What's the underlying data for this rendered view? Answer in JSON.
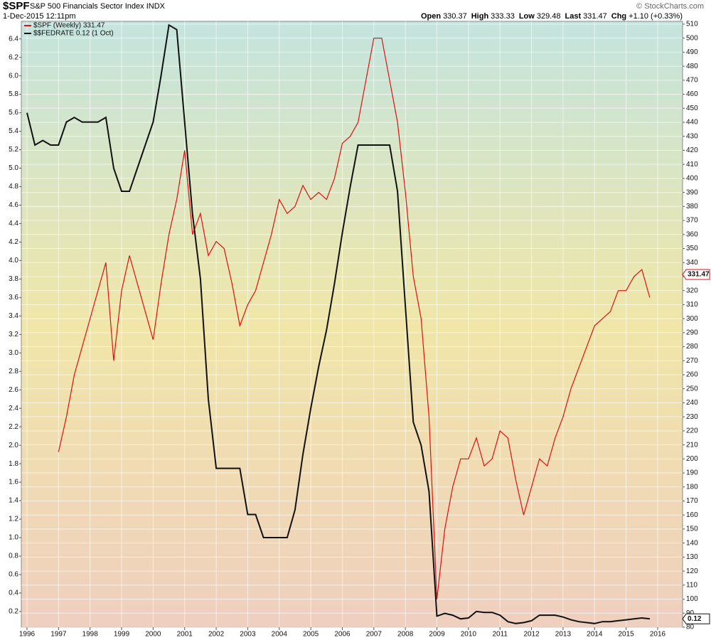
{
  "chart_data": {
    "type": "line",
    "symbol": "$SPF",
    "title": "S&P 500 Financials Sector Index",
    "exchange": "INDX",
    "date": "1-Dec-2015 12:11pm",
    "source": "© StockCharts.com",
    "quote": [
      {
        "label": "Open",
        "value": "330.37"
      },
      {
        "label": "High",
        "value": "333.33"
      },
      {
        "label": "Low",
        "value": "329.48"
      },
      {
        "label": "Last",
        "value": "331.47"
      },
      {
        "label": "Chg",
        "value": "+1.10 (+0.33%)"
      }
    ],
    "grid": true,
    "legend": "top-left",
    "xlim": [
      1995.82,
      2016.79
    ],
    "xticks": [
      1996,
      1997,
      1998,
      1999,
      2000,
      2001,
      2002,
      2003,
      2004,
      2005,
      2006,
      2007,
      2008,
      2009,
      2010,
      2011,
      2012,
      2013,
      2014,
      2015,
      2016
    ],
    "ylim": [
      0.03,
      6.59
    ],
    "yticks": [
      0.2,
      0.4,
      0.6,
      0.8,
      {
        "value": 1,
        "label": "1.0"
      },
      1.2,
      1.4,
      1.6,
      1.8,
      {
        "value": 2,
        "label": "2.0"
      },
      2.2,
      2.4,
      2.6,
      2.8,
      {
        "value": 3,
        "label": "3.0"
      },
      3.2,
      3.4,
      3.6,
      3.8,
      {
        "value": 4,
        "label": "4.0"
      },
      4.2,
      4.4,
      4.6,
      4.8,
      {
        "value": 5,
        "label": "5.0"
      },
      5.2,
      5.4,
      5.6,
      5.8,
      {
        "value": 6,
        "label": "6.0"
      },
      6.2,
      6.4
    ],
    "y2lim": [
      80,
      512
    ],
    "y2ticks": [
      80,
      90,
      100,
      110,
      120,
      130,
      140,
      150,
      160,
      170,
      180,
      190,
      200,
      210,
      220,
      230,
      240,
      250,
      260,
      270,
      280,
      290,
      300,
      310,
      320,
      330,
      340,
      350,
      360,
      370,
      380,
      390,
      400,
      410,
      420,
      430,
      440,
      450,
      460,
      470,
      480,
      490,
      500,
      510
    ],
    "x": [
      1996,
      1996.25,
      1996.5,
      1996.75,
      1997,
      1997.25,
      1997.5,
      1997.75,
      1998,
      1998.25,
      1998.5,
      1998.75,
      1999,
      1999.25,
      1999.5,
      1999.75,
      2000,
      2000.25,
      2000.5,
      2000.75,
      2001,
      2001.25,
      2001.5,
      2001.75,
      2002,
      2002.25,
      2002.5,
      2002.75,
      2003,
      2003.25,
      2003.5,
      2003.75,
      2004,
      2004.25,
      2004.5,
      2004.75,
      2005,
      2005.25,
      2005.5,
      2005.75,
      2006,
      2006.25,
      2006.5,
      2006.75,
      2007,
      2007.25,
      2007.5,
      2007.75,
      2008,
      2008.25,
      2008.5,
      2008.75,
      2009,
      2009.25,
      2009.5,
      2009.75,
      2010,
      2010.25,
      2010.5,
      2010.75,
      2011,
      2011.25,
      2011.5,
      2011.75,
      2012,
      2012.25,
      2012.5,
      2012.75,
      2013,
      2013.25,
      2013.5,
      2013.75,
      2014,
      2014.25,
      2014.5,
      2014.75,
      2015,
      2015.25,
      2015.5,
      2015.75
    ],
    "series": [
      {
        "name": "$SPF (Weekly) 331.47",
        "color": "#dd1111",
        "axis": "y2",
        "tag": 331.47,
        "values": [
          null,
          null,
          null,
          null,
          205,
          230,
          260,
          280,
          300,
          320,
          340,
          270,
          320,
          345,
          325,
          305,
          285,
          325,
          360,
          385,
          420,
          360,
          375,
          345,
          355,
          350,
          325,
          295,
          310,
          320,
          340,
          360,
          385,
          375,
          380,
          395,
          385,
          390,
          385,
          400,
          425,
          430,
          440,
          470,
          500,
          500,
          470,
          440,
          390,
          330,
          300,
          230,
          100,
          150,
          180,
          200,
          200,
          215,
          195,
          200,
          220,
          215,
          185,
          160,
          180,
          200,
          195,
          215,
          230,
          250,
          265,
          280,
          295,
          300,
          305,
          320,
          320,
          330,
          335,
          315
        ]
      },
      {
        "name": "$$FEDRATE 0.12 (1 Oct)",
        "color": "#111111",
        "tag": 0.12,
        "values": [
          5.6,
          5.25,
          5.3,
          5.25,
          5.25,
          5.5,
          5.55,
          5.5,
          5.5,
          5.5,
          5.55,
          5.0,
          4.75,
          4.75,
          5.0,
          5.25,
          5.5,
          6.0,
          6.55,
          6.5,
          5.5,
          4.5,
          3.8,
          2.5,
          1.75,
          1.75,
          1.75,
          1.75,
          1.25,
          1.25,
          1.0,
          1.0,
          1.0,
          1.0,
          1.3,
          1.9,
          2.4,
          2.85,
          3.25,
          3.75,
          4.3,
          4.8,
          5.25,
          5.25,
          5.25,
          5.25,
          5.25,
          4.75,
          3.5,
          2.25,
          2.0,
          1.5,
          0.15,
          0.18,
          0.16,
          0.12,
          0.13,
          0.2,
          0.19,
          0.19,
          0.16,
          0.09,
          0.07,
          0.08,
          0.1,
          0.16,
          0.16,
          0.16,
          0.14,
          0.11,
          0.09,
          0.08,
          0.07,
          0.09,
          0.09,
          0.1,
          0.11,
          0.12,
          0.13,
          0.12
        ]
      }
    ]
  }
}
